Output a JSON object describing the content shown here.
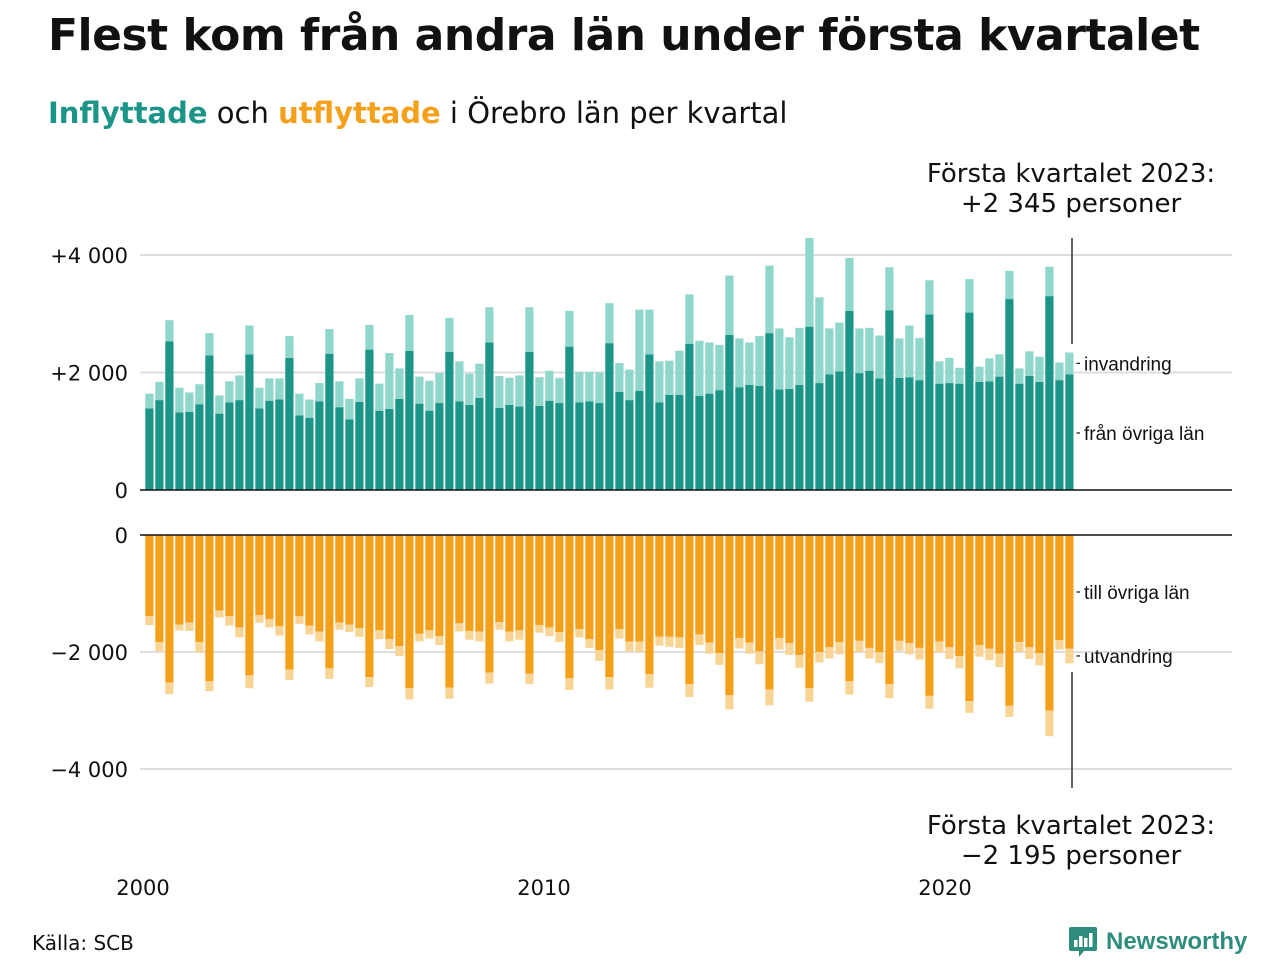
{
  "title": "Flest kom från andra län under första kvartalet",
  "subtitle": {
    "part1": "Inflyttade",
    "part2": " och ",
    "part3": "utflyttade",
    "part4": " i Örebro län per kvartal"
  },
  "annotation_top": {
    "line1": "Första kvartalet 2023:",
    "line2": "+2 345 personer"
  },
  "annotation_bottom": {
    "line1": "Första kvartalet 2023:",
    "line2": "−2 195 personer"
  },
  "source": "Källa: SCB",
  "brand": "Newsworthy",
  "colors": {
    "inflow_domestic": "#1b9587",
    "inflow_immigration": "#8fd6cb",
    "outflow_domestic": "#f5a01a",
    "outflow_emigration": "#f9d595"
  },
  "chart_data": {
    "type": "bar",
    "stacked": true,
    "x_start": "2000 Q1",
    "x_end": "2023 Q1",
    "x_ticks": [
      "2000",
      "2010",
      "2020"
    ],
    "top_panel": {
      "y_ticks": [
        "+4 000",
        "+2 000",
        "0"
      ],
      "ylim": [
        0,
        4500
      ],
      "series_labels": {
        "domestic": "från övriga län",
        "immigration": "invandring"
      },
      "domestic": [
        1390,
        1530,
        2530,
        1320,
        1330,
        1460,
        2290,
        1300,
        1490,
        1530,
        2310,
        1390,
        1520,
        1540,
        2250,
        1270,
        1230,
        1510,
        2320,
        1410,
        1200,
        1500,
        2390,
        1350,
        1380,
        1550,
        2370,
        1470,
        1350,
        1480,
        2350,
        1510,
        1450,
        1570,
        2510,
        1400,
        1450,
        1420,
        2350,
        1430,
        1520,
        1480,
        2440,
        1490,
        1510,
        1480,
        2500,
        1670,
        1530,
        1690,
        2310,
        1490,
        1620,
        1620,
        2490,
        1600,
        1640,
        1700,
        2640,
        1750,
        1790,
        1770,
        2670,
        1710,
        1720,
        1790,
        2780,
        1820,
        1970,
        2020,
        3050,
        1990,
        2030,
        1900,
        3060,
        1910,
        1920,
        1870,
        2990,
        1810,
        1820,
        1810,
        3020,
        1840,
        1850,
        1930,
        3250,
        1810,
        1940,
        1840,
        3300,
        1870,
        1970
      ],
      "immigration": [
        250,
        310,
        360,
        420,
        330,
        340,
        380,
        310,
        360,
        420,
        490,
        350,
        380,
        360,
        370,
        370,
        310,
        310,
        420,
        440,
        350,
        400,
        420,
        460,
        950,
        520,
        610,
        460,
        510,
        510,
        580,
        680,
        530,
        580,
        600,
        540,
        460,
        530,
        760,
        490,
        510,
        430,
        610,
        520,
        500,
        520,
        680,
        490,
        520,
        1380,
        760,
        700,
        580,
        750,
        840,
        940,
        870,
        770,
        1010,
        830,
        720,
        850,
        1150,
        1040,
        880,
        970,
        1510,
        1460,
        780,
        830,
        900,
        760,
        730,
        730,
        730,
        670,
        880,
        720,
        580,
        380,
        430,
        270,
        570,
        260,
        390,
        380,
        480,
        260,
        420,
        430,
        500,
        300,
        370
      ]
    },
    "bottom_panel": {
      "y_ticks": [
        "0",
        "−2 000",
        "−4 000"
      ],
      "ylim": [
        -4500,
        0
      ],
      "series_labels": {
        "domestic": "till övriga län",
        "emigration": "utvandring"
      },
      "domestic": [
        -1390,
        -1830,
        -2520,
        -1530,
        -1500,
        -1830,
        -2500,
        -1290,
        -1390,
        -1580,
        -2400,
        -1370,
        -1440,
        -1560,
        -2300,
        -1390,
        -1550,
        -1650,
        -2280,
        -1500,
        -1530,
        -1590,
        -2430,
        -1630,
        -1780,
        -1900,
        -2620,
        -1690,
        -1630,
        -1730,
        -2610,
        -1510,
        -1640,
        -1650,
        -2350,
        -1490,
        -1650,
        -1630,
        -2370,
        -1540,
        -1580,
        -1660,
        -2450,
        -1610,
        -1780,
        -1970,
        -2430,
        -1610,
        -1820,
        -1820,
        -2380,
        -1740,
        -1740,
        -1750,
        -2550,
        -1700,
        -1840,
        -2020,
        -2740,
        -1760,
        -1840,
        -1990,
        -2640,
        -1760,
        -1850,
        -2050,
        -2620,
        -2000,
        -1920,
        -1830,
        -2500,
        -1810,
        -1930,
        -2000,
        -2550,
        -1810,
        -1850,
        -1930,
        -2750,
        -1820,
        -1920,
        -2070,
        -2840,
        -1880,
        -1940,
        -2030,
        -2920,
        -1830,
        -1920,
        -2020,
        -3000,
        -1800,
        -1940
      ],
      "emigration": [
        -150,
        -160,
        -200,
        -100,
        -140,
        -180,
        -170,
        -120,
        -160,
        -170,
        -220,
        -130,
        -140,
        -160,
        -180,
        -130,
        -150,
        -170,
        -180,
        -120,
        -130,
        -150,
        -170,
        -150,
        -170,
        -170,
        -190,
        -130,
        -140,
        -150,
        -190,
        -140,
        -150,
        -170,
        -190,
        -130,
        -170,
        -160,
        -180,
        -130,
        -150,
        -170,
        -200,
        -140,
        -150,
        -180,
        -210,
        -160,
        -170,
        -180,
        -230,
        -150,
        -170,
        -180,
        -220,
        -180,
        -190,
        -200,
        -240,
        -180,
        -190,
        -220,
        -270,
        -200,
        -200,
        -220,
        -230,
        -180,
        -190,
        -210,
        -230,
        -190,
        -180,
        -190,
        -240,
        -170,
        -190,
        -200,
        -220,
        -190,
        -200,
        -210,
        -200,
        -200,
        -200,
        -230,
        -190,
        -170,
        -200,
        -210,
        -440,
        -160,
        -255
      ]
    }
  }
}
